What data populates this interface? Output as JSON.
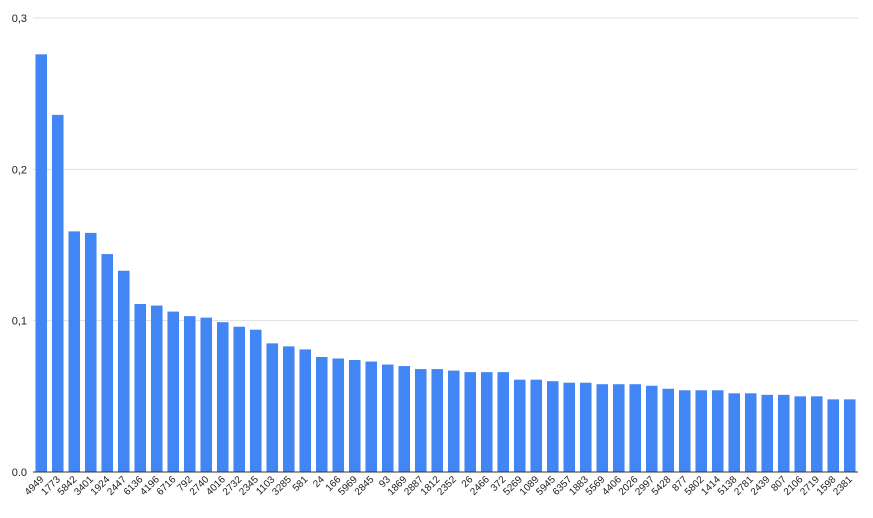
{
  "chart_data": {
    "type": "bar",
    "title": "",
    "xlabel": "",
    "ylabel": "",
    "ylim": [
      0,
      0.3
    ],
    "y_ticks": [
      "0.0",
      "0,1",
      "0,2",
      "0,3"
    ],
    "grid": true,
    "legend": "none",
    "bar_color": "#4285f4",
    "categories": [
      "4949",
      "1773",
      "5842",
      "3401",
      "1924",
      "2447",
      "6136",
      "4196",
      "6716",
      "792",
      "2740",
      "4016",
      "2732",
      "2345",
      "1103",
      "3285",
      "581",
      "24",
      "166",
      "5969",
      "2845",
      "93",
      "1869",
      "2887",
      "1812",
      "2352",
      "26",
      "2466",
      "372",
      "5269",
      "1089",
      "5945",
      "6357",
      "1883",
      "5569",
      "4406",
      "2026",
      "2997",
      "5428",
      "877",
      "5802",
      "1414",
      "5138",
      "2781",
      "2439",
      "807",
      "2106",
      "2719",
      "1598",
      "2381"
    ],
    "values": [
      0.276,
      0.236,
      0.159,
      0.158,
      0.144,
      0.133,
      0.111,
      0.11,
      0.106,
      0.103,
      0.102,
      0.099,
      0.096,
      0.094,
      0.085,
      0.083,
      0.081,
      0.076,
      0.075,
      0.074,
      0.073,
      0.071,
      0.07,
      0.068,
      0.068,
      0.067,
      0.066,
      0.066,
      0.066,
      0.061,
      0.061,
      0.06,
      0.059,
      0.059,
      0.058,
      0.058,
      0.058,
      0.057,
      0.055,
      0.054,
      0.054,
      0.054,
      0.052,
      0.052,
      0.051,
      0.051,
      0.05,
      0.05,
      0.048,
      0.048
    ]
  }
}
